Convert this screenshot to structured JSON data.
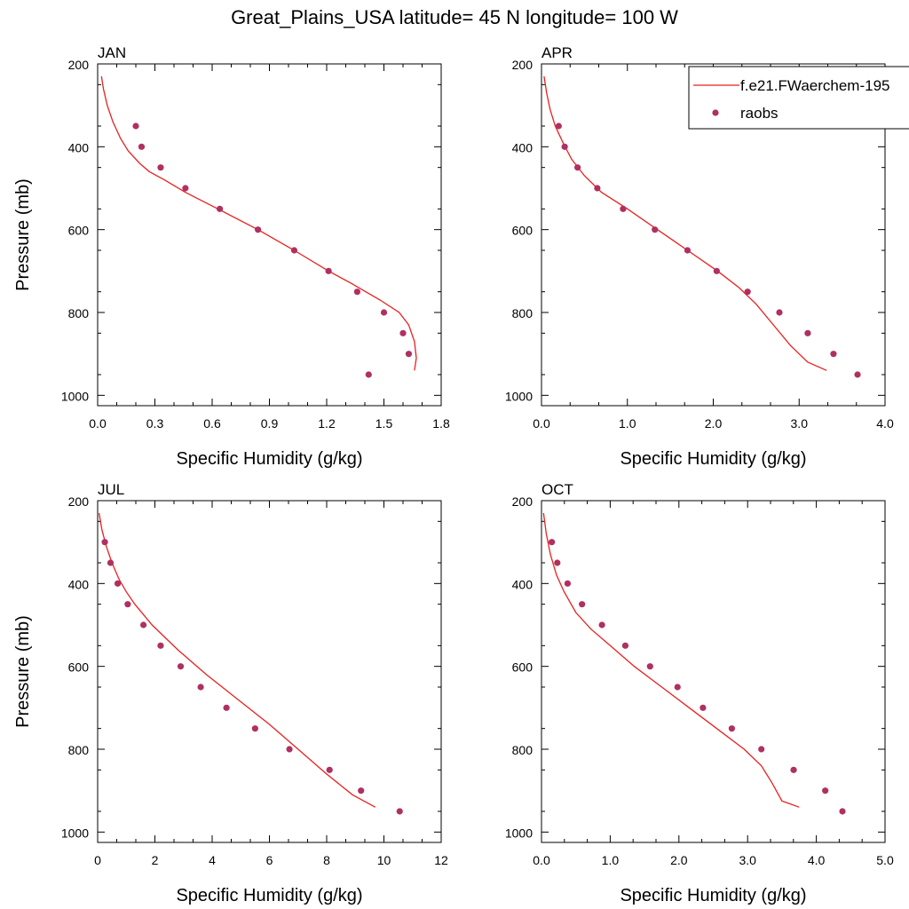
{
  "title": "Great_Plains_USA  latitude= 45 N longitude= 100 W",
  "colors": {
    "model_line": "#e8211f",
    "obs_marker": "#b03060",
    "axis": "#000000"
  },
  "legend": {
    "entries": [
      {
        "label": "f.e21.FWaerchem-195",
        "kind": "line"
      },
      {
        "label": "raobs",
        "kind": "marker"
      }
    ]
  },
  "chart_data": [
    {
      "type": "line",
      "panel_label": "JAN",
      "xlabel": "Specific Humidity (g/kg)",
      "ylabel": "Pressure (mb)",
      "xlim": [
        0,
        1.8
      ],
      "ylim": [
        1025,
        200
      ],
      "y_reversed": true,
      "x_ticks": [
        "0.0",
        "0.3",
        "0.6",
        "0.9",
        "1.2",
        "1.5",
        "1.8"
      ],
      "y_ticks": [
        "200",
        "400",
        "600",
        "800",
        "1000"
      ],
      "series": [
        {
          "name": "f.e21.FWaerchem-195",
          "type": "line",
          "x": [
            0.02,
            0.03,
            0.05,
            0.08,
            0.12,
            0.16,
            0.22,
            0.27,
            0.35,
            0.46,
            0.63,
            0.84,
            1.03,
            1.21,
            1.33,
            1.48,
            1.58,
            1.63,
            1.66,
            1.67,
            1.66
          ],
          "y": [
            230,
            260,
            300,
            340,
            380,
            410,
            440,
            460,
            480,
            510,
            550,
            600,
            650,
            700,
            730,
            770,
            800,
            830,
            870,
            910,
            940
          ]
        },
        {
          "name": "raobs",
          "type": "scatter",
          "x": [
            0.2,
            0.23,
            0.33,
            0.46,
            0.64,
            0.84,
            1.03,
            1.21,
            1.36,
            1.5,
            1.6,
            1.63,
            1.42
          ],
          "y": [
            350,
            400,
            450,
            500,
            550,
            600,
            650,
            700,
            750,
            800,
            850,
            900,
            950
          ]
        }
      ]
    },
    {
      "type": "line",
      "panel_label": "APR",
      "xlabel": "Specific Humidity (g/kg)",
      "ylabel": "",
      "xlim": [
        0,
        4
      ],
      "ylim": [
        1025,
        200
      ],
      "y_reversed": true,
      "x_ticks": [
        "0.0",
        "1.0",
        "2.0",
        "3.0",
        "4.0"
      ],
      "y_ticks": [
        "200",
        "400",
        "600",
        "800",
        "1000"
      ],
      "series": [
        {
          "name": "f.e21.FWaerchem-195",
          "type": "line",
          "x": [
            0.03,
            0.06,
            0.1,
            0.16,
            0.25,
            0.35,
            0.5,
            0.7,
            1.0,
            1.35,
            1.7,
            2.05,
            2.3,
            2.5,
            2.7,
            2.9,
            3.1,
            3.32
          ],
          "y": [
            230,
            270,
            310,
            350,
            390,
            430,
            470,
            510,
            550,
            600,
            650,
            700,
            740,
            780,
            830,
            880,
            920,
            940
          ]
        },
        {
          "name": "raobs",
          "type": "scatter",
          "x": [
            0.2,
            0.27,
            0.42,
            0.65,
            0.95,
            1.32,
            1.7,
            2.04,
            2.4,
            2.77,
            3.1,
            3.4,
            3.68
          ],
          "y": [
            350,
            400,
            450,
            500,
            550,
            600,
            650,
            700,
            750,
            800,
            850,
            900,
            950
          ]
        }
      ]
    },
    {
      "type": "line",
      "panel_label": "JUL",
      "xlabel": "Specific Humidity (g/kg)",
      "ylabel": "Pressure (mb)",
      "xlim": [
        0,
        12
      ],
      "ylim": [
        1025,
        200
      ],
      "y_reversed": true,
      "x_ticks": [
        "0",
        "2",
        "4",
        "6",
        "8",
        "10",
        "12"
      ],
      "y_ticks": [
        "200",
        "400",
        "600",
        "800",
        "1000"
      ],
      "series": [
        {
          "name": "f.e21.FWaerchem-195",
          "type": "line",
          "x": [
            0.05,
            0.15,
            0.3,
            0.5,
            0.75,
            1.0,
            1.3,
            1.9,
            2.8,
            3.8,
            4.9,
            6.0,
            7.0,
            8.0,
            8.9,
            9.3,
            9.7
          ],
          "y": [
            230,
            270,
            310,
            350,
            390,
            420,
            450,
            500,
            560,
            620,
            680,
            740,
            800,
            860,
            910,
            925,
            940
          ]
        },
        {
          "name": "raobs",
          "type": "scatter",
          "x": [
            0.25,
            0.45,
            0.7,
            1.05,
            1.6,
            2.2,
            2.9,
            3.6,
            4.5,
            5.5,
            6.7,
            8.1,
            9.2,
            10.55
          ],
          "y": [
            300,
            350,
            400,
            450,
            500,
            550,
            600,
            650,
            700,
            750,
            800,
            850,
            900,
            950
          ]
        }
      ]
    },
    {
      "type": "line",
      "panel_label": "OCT",
      "xlabel": "Specific Humidity (g/kg)",
      "ylabel": "",
      "xlim": [
        0,
        5
      ],
      "ylim": [
        1025,
        200
      ],
      "y_reversed": true,
      "x_ticks": [
        "0.0",
        "1.0",
        "2.0",
        "3.0",
        "4.0",
        "5.0"
      ],
      "y_ticks": [
        "200",
        "400",
        "600",
        "800",
        "1000"
      ],
      "series": [
        {
          "name": "f.e21.FWaerchem-195",
          "type": "line",
          "x": [
            0.03,
            0.07,
            0.13,
            0.22,
            0.33,
            0.5,
            0.72,
            1.0,
            1.35,
            1.75,
            2.15,
            2.55,
            2.95,
            3.2,
            3.35,
            3.5,
            3.75
          ],
          "y": [
            230,
            280,
            330,
            380,
            420,
            470,
            510,
            550,
            600,
            650,
            700,
            750,
            800,
            840,
            880,
            925,
            940
          ]
        },
        {
          "name": "raobs",
          "type": "scatter",
          "x": [
            0.15,
            0.23,
            0.38,
            0.59,
            0.88,
            1.22,
            1.58,
            1.98,
            2.35,
            2.77,
            3.2,
            3.67,
            4.13,
            4.38
          ],
          "y": [
            300,
            350,
            400,
            450,
            500,
            550,
            600,
            650,
            700,
            750,
            800,
            850,
            900,
            950
          ]
        }
      ]
    }
  ]
}
